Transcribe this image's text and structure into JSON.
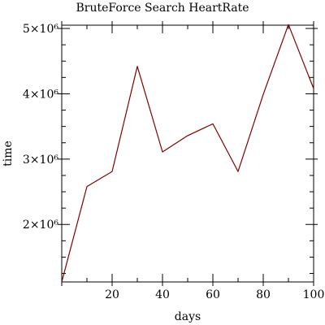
{
  "chart_data": {
    "type": "line",
    "title": "BruteForce Search HeartRate",
    "xlabel": "days",
    "ylabel": "time",
    "xlim": [
      0,
      100
    ],
    "ylim": [
      1120000,
      5050000
    ],
    "x_ticks": [
      20,
      40,
      60,
      80,
      100
    ],
    "x_tick_labels": [
      "20",
      "40",
      "60",
      "80",
      "100"
    ],
    "y_ticks": [
      2000000,
      3000000,
      4000000,
      5000000
    ],
    "y_tick_labels": [
      "2×10⁶",
      "3×10⁶",
      "4×10⁶",
      "5×10⁶"
    ],
    "grid": false,
    "series": [
      {
        "color": "#800000",
        "x": [
          0,
          10,
          20,
          30,
          40,
          50,
          60,
          70,
          80,
          90,
          100
        ],
        "y": [
          1120000,
          2580000,
          2810000,
          4420000,
          3110000,
          3360000,
          3540000,
          2810000,
          3990000,
          5060000,
          4080000
        ]
      }
    ]
  }
}
